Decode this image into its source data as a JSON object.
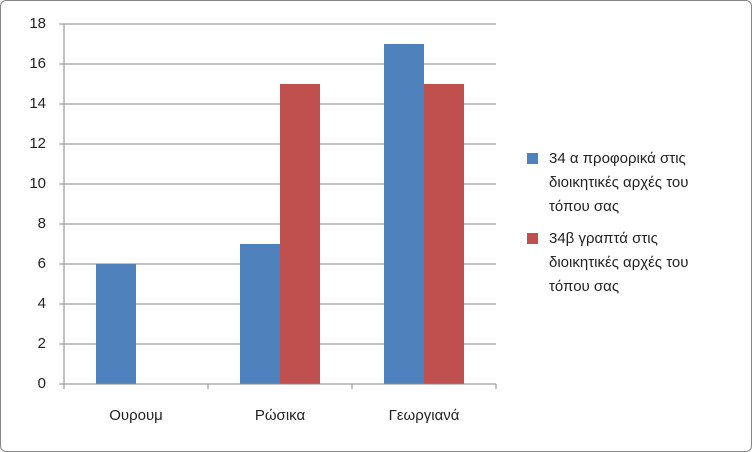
{
  "chart_data": {
    "type": "bar",
    "categories": [
      "Ουρουμ",
      "Ρώσικα",
      "Γεωργιανά"
    ],
    "series": [
      {
        "name": "34 α προφορικά στις διοικητικές αρχές του τόπου σας",
        "color": "#4f81bd",
        "values": [
          6,
          7,
          17
        ]
      },
      {
        "name": "34β γραπτά στις διοικητικές αρχές του τόπου σας",
        "color": "#c0504d",
        "values": [
          null,
          15,
          15
        ]
      }
    ],
    "ylim": [
      0,
      18
    ],
    "yticks": [
      0,
      2,
      4,
      6,
      8,
      10,
      12,
      14,
      16,
      18
    ],
    "grid": true,
    "legend": "right"
  }
}
